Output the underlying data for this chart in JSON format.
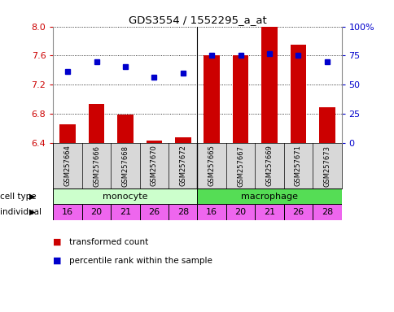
{
  "title": "GDS3554 / 1552295_a_at",
  "samples": [
    "GSM257664",
    "GSM257666",
    "GSM257668",
    "GSM257670",
    "GSM257672",
    "GSM257665",
    "GSM257667",
    "GSM257669",
    "GSM257671",
    "GSM257673"
  ],
  "bar_values": [
    6.65,
    6.93,
    6.79,
    6.43,
    6.48,
    7.6,
    7.6,
    8.0,
    7.75,
    6.89
  ],
  "dot_values": [
    7.38,
    7.52,
    7.45,
    7.3,
    7.36,
    7.6,
    7.6,
    7.63,
    7.6,
    7.52
  ],
  "ylim_left": [
    6.4,
    8.0
  ],
  "ylim_right": [
    0,
    100
  ],
  "yticks_left": [
    6.4,
    6.8,
    7.2,
    7.6,
    8.0
  ],
  "yticks_right": [
    0,
    25,
    50,
    75,
    100
  ],
  "bar_color": "#cc0000",
  "dot_color": "#0000cc",
  "cell_type_colors": {
    "monocyte": "#ccffcc",
    "macrophage": "#55dd55"
  },
  "individuals": [
    16,
    20,
    21,
    26,
    28,
    16,
    20,
    21,
    26,
    28
  ],
  "individual_color": "#ee66ee",
  "legend_bar": "transformed count",
  "legend_dot": "percentile rank within the sample",
  "bg_color": "#ffffff",
  "tick_label_color_left": "#cc0000",
  "tick_label_color_right": "#0000cc",
  "label_bg": "#d8d8d8"
}
